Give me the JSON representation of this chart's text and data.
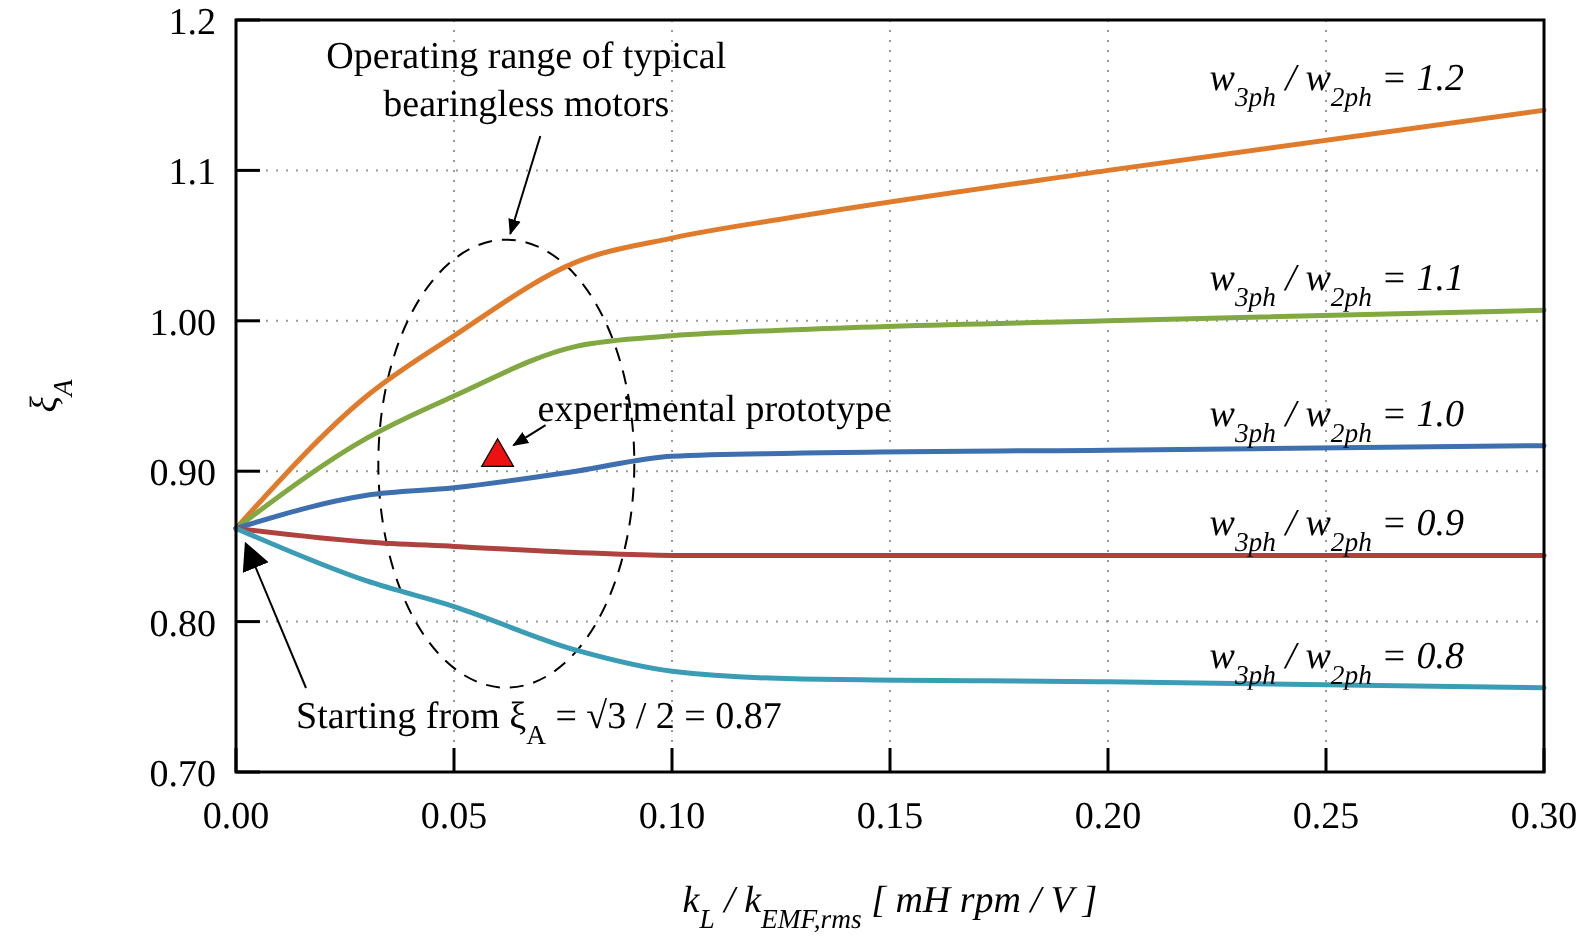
{
  "chart_data": {
    "type": "line",
    "xlabel": "k$_{L}$ / k$_{EMF,rms}$ [ mH rpm / V ]",
    "ylabel": "ξ$_{A}$",
    "x": [
      0,
      0.03,
      0.05,
      0.078,
      0.1,
      0.128,
      0.2,
      0.3
    ],
    "xlim": [
      0,
      0.3
    ],
    "xticks": [
      {
        "value": 0,
        "label": "0.00"
      },
      {
        "value": 0.05,
        "label": "0.05"
      },
      {
        "value": 0.1,
        "label": "0.10"
      },
      {
        "value": 0.15,
        "label": "0.15"
      },
      {
        "value": 0.2,
        "label": "0.20"
      },
      {
        "value": 0.25,
        "label": "0.25"
      },
      {
        "value": 0.3,
        "label": "0.30"
      }
    ],
    "ylim": [
      0.7,
      1.2
    ],
    "yticks": [
      {
        "value": 0.7,
        "label": "0.70"
      },
      {
        "value": 0.8,
        "label": "0.80"
      },
      {
        "value": 0.9,
        "label": "0.90"
      },
      {
        "value": 1.0,
        "label": "1.00"
      },
      1.1,
      1.2
    ],
    "grid": true,
    "marker": "none",
    "line_style": "solid",
    "series": [
      {
        "name": "w$_{3ph}$ / w$_{2ph}$ = 1.2",
        "color": "#e07b2c",
        "values": [
          0.862,
          0.95,
          0.99,
          1.039,
          1.055,
          1.069,
          1.1,
          1.14
        ]
      },
      {
        "name": "w$_{3ph}$ / w$_{2ph}$ = 1.1",
        "color": "#82a842",
        "values": [
          0.862,
          0.922,
          0.95,
          0.983,
          0.99,
          0.994,
          1.0,
          1.007
        ]
      },
      {
        "name": "w$_{3ph}$ / w$_{2ph}$ = 1.0",
        "color": "#3e6fae",
        "values": [
          0.862,
          0.884,
          0.889,
          0.9,
          0.91,
          0.912,
          0.914,
          0.917
        ]
      },
      {
        "name": "w$_{3ph}$ / w$_{2ph}$ = 0.9",
        "color": "#b0413e",
        "values": [
          0.862,
          0.853,
          0.85,
          0.846,
          0.844,
          0.844,
          0.844,
          0.844
        ]
      },
      {
        "name": "w$_{3ph}$ / w$_{2ph}$ = 0.8",
        "color": "#3a9cb5",
        "values": [
          0.862,
          0.827,
          0.81,
          0.781,
          0.767,
          0.762,
          0.76,
          0.756
        ]
      },
      {
        "type": "scatter",
        "marker": "triangle",
        "color": "#ee1111",
        "x": [
          0.06
        ],
        "values": [
          0.912
        ]
      }
    ],
    "annotations": [
      "Operating range of typical bearingless motors",
      {
        "text": "experimental prototype",
        "x": 0.06,
        "y": 0.912
      },
      "Starting from ξ$_{A}$ = √3 / 2 = 0.87"
    ]
  }
}
